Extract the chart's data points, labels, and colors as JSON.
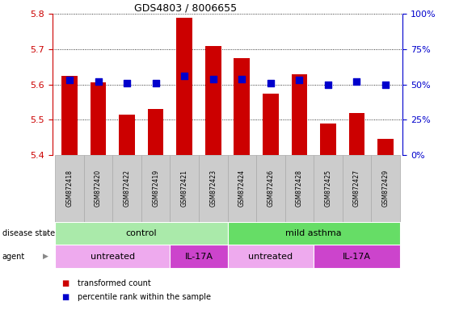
{
  "title": "GDS4803 / 8006655",
  "samples": [
    "GSM872418",
    "GSM872420",
    "GSM872422",
    "GSM872419",
    "GSM872421",
    "GSM872423",
    "GSM872424",
    "GSM872426",
    "GSM872428",
    "GSM872425",
    "GSM872427",
    "GSM872429"
  ],
  "red_values": [
    5.625,
    5.605,
    5.515,
    5.53,
    5.79,
    5.71,
    5.675,
    5.575,
    5.63,
    5.49,
    5.52,
    5.445
  ],
  "blue_pct": [
    53,
    52,
    51,
    51,
    56,
    54,
    54,
    51,
    53,
    50,
    52,
    50
  ],
  "ylim_left": [
    5.4,
    5.8
  ],
  "ylim_right": [
    0,
    100
  ],
  "yticks_left": [
    5.4,
    5.5,
    5.6,
    5.7,
    5.8
  ],
  "yticks_right": [
    0,
    25,
    50,
    75,
    100
  ],
  "ytick_labels_right": [
    "0%",
    "25%",
    "50%",
    "75%",
    "100%"
  ],
  "bar_color": "#cc0000",
  "dot_color": "#0000cc",
  "bg_color": "#ffffff",
  "axis_color_left": "#cc0000",
  "axis_color_right": "#0000cc",
  "disease_state_groups": [
    {
      "label": "control",
      "start": 0,
      "end": 6,
      "color": "#aaeaaa"
    },
    {
      "label": "mild asthma",
      "start": 6,
      "end": 12,
      "color": "#66dd66"
    }
  ],
  "agent_groups": [
    {
      "label": "untreated",
      "start": 0,
      "end": 4,
      "color": "#eeaaee"
    },
    {
      "label": "IL-17A",
      "start": 4,
      "end": 6,
      "color": "#cc44cc"
    },
    {
      "label": "untreated",
      "start": 6,
      "end": 9,
      "color": "#eeaaee"
    },
    {
      "label": "IL-17A",
      "start": 9,
      "end": 12,
      "color": "#cc44cc"
    }
  ],
  "legend_red": "transformed count",
  "legend_blue": "percentile rank within the sample",
  "disease_state_label": "disease state",
  "agent_label": "agent",
  "bar_width": 0.55,
  "dot_size": 28,
  "label_box_color": "#cccccc",
  "label_box_edge": "#aaaaaa"
}
